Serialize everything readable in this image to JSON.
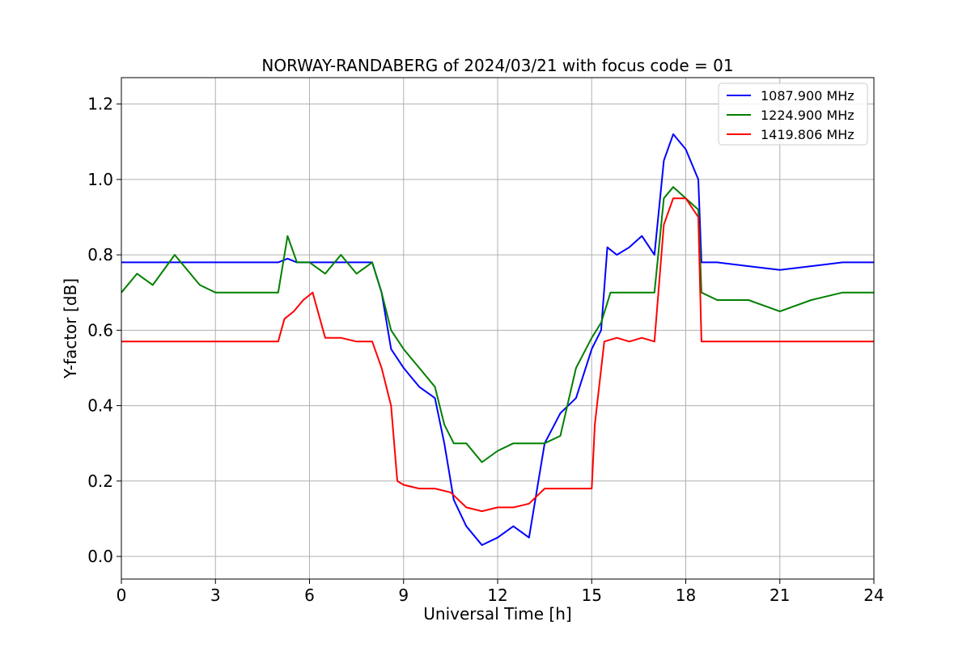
{
  "chart_data": {
    "type": "line",
    "title": "NORWAY-RANDABERG of 2024/03/21 with focus code = 01",
    "xlabel": "Universal Time [h]",
    "ylabel": "Y-factor [dB]",
    "xlim": [
      0,
      24
    ],
    "ylim": [
      -0.06,
      1.27
    ],
    "xticks": [
      0,
      3,
      6,
      9,
      12,
      15,
      18,
      21,
      24
    ],
    "yticks": [
      0.0,
      0.2,
      0.4,
      0.6,
      0.8,
      1.0,
      1.2
    ],
    "xtick_labels": [
      "0",
      "3",
      "6",
      "9",
      "12",
      "15",
      "18",
      "21",
      "24"
    ],
    "ytick_labels": [
      "0.0",
      "0.2",
      "0.4",
      "0.6",
      "0.8",
      "1.0",
      "1.2"
    ],
    "grid": true,
    "legend_position": "top-right",
    "series": [
      {
        "name": "1087.900 MHz",
        "color": "#0000ff",
        "x": [
          0,
          0.5,
          1,
          2,
          3,
          4,
          5,
          5.3,
          5.6,
          6,
          6.5,
          7,
          7.5,
          8,
          8.3,
          8.6,
          9,
          9.5,
          10,
          10.3,
          10.6,
          11,
          11.5,
          12,
          12.5,
          13,
          13.5,
          14,
          14.5,
          15,
          15.3,
          15.5,
          15.8,
          16.2,
          16.6,
          17,
          17.3,
          17.6,
          18,
          18.4,
          18.5,
          19,
          20,
          21,
          22,
          23,
          24
        ],
        "y": [
          0.78,
          0.78,
          0.78,
          0.78,
          0.78,
          0.78,
          0.78,
          0.79,
          0.78,
          0.78,
          0.78,
          0.78,
          0.78,
          0.78,
          0.7,
          0.55,
          0.5,
          0.45,
          0.42,
          0.3,
          0.15,
          0.08,
          0.03,
          0.05,
          0.08,
          0.05,
          0.3,
          0.38,
          0.42,
          0.55,
          0.6,
          0.82,
          0.8,
          0.82,
          0.85,
          0.8,
          1.05,
          1.12,
          1.08,
          1.0,
          0.78,
          0.78,
          0.77,
          0.76,
          0.77,
          0.78,
          0.78
        ]
      },
      {
        "name": "1224.900 MHz",
        "color": "#008000",
        "x": [
          0,
          0.5,
          1,
          1.7,
          2.5,
          3,
          4,
          5,
          5.3,
          5.6,
          6,
          6.5,
          7,
          7.5,
          8,
          8.3,
          8.6,
          9,
          9.5,
          10,
          10.3,
          10.6,
          11,
          11.5,
          12,
          12.5,
          13,
          13.5,
          14,
          14.5,
          15,
          15.3,
          15.6,
          16,
          16.5,
          17,
          17.3,
          17.6,
          18,
          18.4,
          18.5,
          19,
          20,
          21,
          22,
          23,
          24
        ],
        "y": [
          0.7,
          0.75,
          0.72,
          0.8,
          0.72,
          0.7,
          0.7,
          0.7,
          0.85,
          0.78,
          0.78,
          0.75,
          0.8,
          0.75,
          0.78,
          0.7,
          0.6,
          0.55,
          0.5,
          0.45,
          0.35,
          0.3,
          0.3,
          0.25,
          0.28,
          0.3,
          0.3,
          0.3,
          0.32,
          0.5,
          0.58,
          0.62,
          0.7,
          0.7,
          0.7,
          0.7,
          0.95,
          0.98,
          0.95,
          0.92,
          0.7,
          0.68,
          0.68,
          0.65,
          0.68,
          0.7,
          0.7
        ]
      },
      {
        "name": "1419.806 MHz",
        "color": "#ff0000",
        "x": [
          0,
          1,
          2,
          3,
          4,
          5,
          5.2,
          5.5,
          5.8,
          6.1,
          6.5,
          7,
          7.5,
          8,
          8.3,
          8.6,
          8.8,
          9,
          9.5,
          10,
          10.5,
          11,
          11.5,
          12,
          12.5,
          13,
          13.5,
          14,
          14.5,
          15,
          15.1,
          15.4,
          15.8,
          16.2,
          16.6,
          17,
          17.3,
          17.6,
          18,
          18.4,
          18.5,
          19,
          20,
          21,
          22,
          23,
          24
        ],
        "y": [
          0.57,
          0.57,
          0.57,
          0.57,
          0.57,
          0.57,
          0.63,
          0.65,
          0.68,
          0.7,
          0.58,
          0.58,
          0.57,
          0.57,
          0.5,
          0.4,
          0.2,
          0.19,
          0.18,
          0.18,
          0.17,
          0.13,
          0.12,
          0.13,
          0.13,
          0.14,
          0.18,
          0.18,
          0.18,
          0.18,
          0.35,
          0.57,
          0.58,
          0.57,
          0.58,
          0.57,
          0.88,
          0.95,
          0.95,
          0.9,
          0.57,
          0.57,
          0.57,
          0.57,
          0.57,
          0.57,
          0.57
        ]
      }
    ]
  }
}
